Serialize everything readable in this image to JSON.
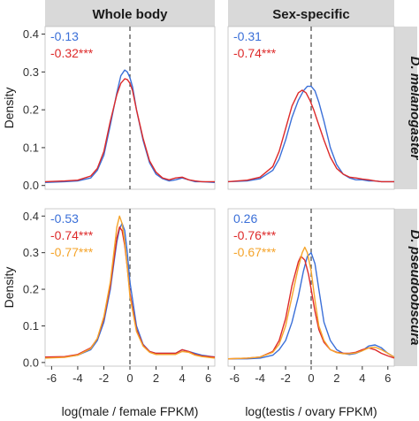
{
  "chart_data": {
    "type": "line",
    "column_strips": [
      "Whole body",
      "Sex-specific"
    ],
    "row_strips": [
      "D. melanogaster",
      "D. pseudoobscura"
    ],
    "ylabel": "Density",
    "xlabels": [
      "log(male / female FPKM)",
      "log(testis / ovary FPKM)"
    ],
    "xlim": [
      -6.5,
      6.5
    ],
    "ylim": [
      -0.01,
      0.42
    ],
    "xticks": [
      -6,
      -4,
      -2,
      0,
      2,
      4,
      6
    ],
    "xtick_labels": [
      "-6",
      "-4",
      "-2",
      "0",
      "2",
      "4",
      "6"
    ],
    "yticks": [
      0.0,
      0.1,
      0.2,
      0.3,
      0.4
    ],
    "ytick_labels": [
      "0.0",
      "0.1",
      "0.2",
      "0.3",
      "0.4"
    ],
    "reference_line_x": 0,
    "colors": {
      "blue": "#3a6fd8",
      "red": "#dd2a2a",
      "orange": "#f5a42b",
      "strip_bg": "#d9d9d9",
      "dashed": "#444444"
    },
    "panels": [
      {
        "id": "melanogaster-whole-body",
        "annotations": [
          {
            "text": "-0.13",
            "color": "#3a6fd8"
          },
          {
            "text": "-0.32***",
            "color": "#dd2a2a"
          }
        ],
        "series": [
          {
            "color": "#3a6fd8",
            "x": [
              -6.5,
              -5,
              -4,
              -3,
              -2.5,
              -2,
              -1.5,
              -1,
              -0.7,
              -0.4,
              -0.2,
              0,
              0.2,
              0.5,
              1,
              1.5,
              2,
              2.5,
              3,
              3.5,
              4,
              4.5,
              5,
              5.5,
              6.5
            ],
            "y": [
              0.008,
              0.01,
              0.012,
              0.02,
              0.04,
              0.08,
              0.16,
              0.245,
              0.29,
              0.305,
              0.3,
              0.285,
              0.26,
              0.2,
              0.12,
              0.06,
              0.03,
              0.018,
              0.012,
              0.015,
              0.02,
              0.015,
              0.01,
              0.01,
              0.008
            ]
          },
          {
            "color": "#dd2a2a",
            "x": [
              -6.5,
              -5,
              -4,
              -3,
              -2.5,
              -2,
              -1.5,
              -1,
              -0.7,
              -0.4,
              -0.2,
              0,
              0.2,
              0.5,
              1,
              1.5,
              2,
              2.5,
              3,
              3.5,
              4,
              4.5,
              5,
              5.5,
              6.5
            ],
            "y": [
              0.01,
              0.012,
              0.014,
              0.025,
              0.045,
              0.09,
              0.17,
              0.24,
              0.27,
              0.282,
              0.28,
              0.27,
              0.25,
              0.2,
              0.125,
              0.065,
              0.035,
              0.02,
              0.015,
              0.02,
              0.022,
              0.015,
              0.012,
              0.01,
              0.01
            ]
          }
        ]
      },
      {
        "id": "melanogaster-sex-specific",
        "annotations": [
          {
            "text": "-0.31",
            "color": "#3a6fd8"
          },
          {
            "text": "-0.74***",
            "color": "#dd2a2a"
          }
        ],
        "series": [
          {
            "color": "#3a6fd8",
            "x": [
              -6.5,
              -5,
              -4,
              -3,
              -2.5,
              -2,
              -1.5,
              -1,
              -0.6,
              -0.3,
              0,
              0.3,
              0.6,
              1,
              1.5,
              2,
              2.5,
              3,
              3.5,
              4,
              4.5,
              5,
              5.5,
              6.5
            ],
            "y": [
              0.01,
              0.012,
              0.018,
              0.04,
              0.07,
              0.12,
              0.18,
              0.225,
              0.25,
              0.262,
              0.262,
              0.25,
              0.22,
              0.17,
              0.1,
              0.055,
              0.03,
              0.02,
              0.015,
              0.015,
              0.012,
              0.012,
              0.01,
              0.01
            ]
          },
          {
            "color": "#dd2a2a",
            "x": [
              -6.5,
              -5,
              -4,
              -3,
              -2.5,
              -2,
              -1.5,
              -1,
              -0.7,
              -0.4,
              -0.1,
              0.2,
              0.5,
              1,
              1.5,
              2,
              2.5,
              3,
              3.5,
              4,
              4.5,
              5,
              5.5,
              6.5
            ],
            "y": [
              0.01,
              0.014,
              0.022,
              0.05,
              0.09,
              0.15,
              0.21,
              0.245,
              0.252,
              0.245,
              0.225,
              0.2,
              0.17,
              0.12,
              0.075,
              0.045,
              0.03,
              0.022,
              0.02,
              0.017,
              0.015,
              0.012,
              0.01,
              0.01
            ]
          }
        ]
      },
      {
        "id": "pseudoobscura-whole-body",
        "annotations": [
          {
            "text": "-0.53",
            "color": "#3a6fd8"
          },
          {
            "text": "-0.74***",
            "color": "#dd2a2a"
          },
          {
            "text": "-0.77***",
            "color": "#f5a42b"
          }
        ],
        "series": [
          {
            "color": "#3a6fd8",
            "x": [
              -6.5,
              -5,
              -4,
              -3,
              -2.5,
              -2,
              -1.5,
              -1.2,
              -1,
              -0.8,
              -0.6,
              -0.4,
              -0.2,
              0,
              0.5,
              1,
              1.5,
              2,
              2.5,
              3,
              3.5,
              4,
              4.5,
              5,
              5.5,
              6.5
            ],
            "y": [
              0.015,
              0.015,
              0.02,
              0.035,
              0.06,
              0.11,
              0.2,
              0.28,
              0.33,
              0.365,
              0.38,
              0.36,
              0.3,
              0.22,
              0.1,
              0.05,
              0.03,
              0.025,
              0.025,
              0.025,
              0.025,
              0.035,
              0.03,
              0.025,
              0.02,
              0.015
            ]
          },
          {
            "color": "#dd2a2a",
            "x": [
              -6.5,
              -5,
              -4,
              -3,
              -2.5,
              -2,
              -1.5,
              -1.2,
              -1,
              -0.8,
              -0.6,
              -0.4,
              -0.2,
              0,
              0.5,
              1,
              1.5,
              2,
              2.5,
              3,
              3.5,
              4,
              4.5,
              5,
              5.5,
              6.5
            ],
            "y": [
              0.015,
              0.016,
              0.022,
              0.04,
              0.065,
              0.12,
              0.21,
              0.29,
              0.34,
              0.37,
              0.36,
              0.32,
              0.26,
              0.19,
              0.09,
              0.048,
              0.03,
              0.025,
              0.025,
              0.025,
              0.025,
              0.035,
              0.03,
              0.022,
              0.018,
              0.015
            ]
          },
          {
            "color": "#f5a42b",
            "x": [
              -6.5,
              -5,
              -4,
              -3,
              -2.5,
              -2,
              -1.5,
              -1.2,
              -1,
              -0.8,
              -0.6,
              -0.4,
              -0.2,
              0,
              0.5,
              1,
              1.5,
              2,
              2.5,
              3,
              3.5,
              4,
              4.5,
              5,
              5.5,
              6.5
            ],
            "y": [
              0.012,
              0.014,
              0.02,
              0.038,
              0.066,
              0.125,
              0.22,
              0.31,
              0.37,
              0.4,
              0.38,
              0.33,
              0.26,
              0.18,
              0.085,
              0.045,
              0.028,
              0.022,
              0.022,
              0.022,
              0.022,
              0.03,
              0.028,
              0.02,
              0.016,
              0.012
            ]
          }
        ]
      },
      {
        "id": "pseudoobscura-sex-specific",
        "annotations": [
          {
            "text": "0.26",
            "color": "#3a6fd8"
          },
          {
            "text": "-0.76***",
            "color": "#dd2a2a"
          },
          {
            "text": "-0.67***",
            "color": "#f5a42b"
          }
        ],
        "series": [
          {
            "color": "#3a6fd8",
            "x": [
              -6.5,
              -5,
              -4,
              -3,
              -2.5,
              -2,
              -1.5,
              -1,
              -0.6,
              -0.3,
              0,
              0.3,
              0.6,
              1,
              1.5,
              2,
              2.5,
              3,
              3.5,
              4,
              4.5,
              5,
              5.5,
              6,
              6.5
            ],
            "y": [
              0.01,
              0.01,
              0.012,
              0.02,
              0.035,
              0.06,
              0.11,
              0.18,
              0.25,
              0.29,
              0.3,
              0.27,
              0.2,
              0.11,
              0.06,
              0.035,
              0.025,
              0.022,
              0.025,
              0.032,
              0.045,
              0.048,
              0.04,
              0.025,
              0.015
            ]
          },
          {
            "color": "#dd2a2a",
            "x": [
              -6.5,
              -5,
              -4,
              -3,
              -2.5,
              -2,
              -1.5,
              -1,
              -0.8,
              -0.5,
              -0.2,
              0,
              0.3,
              0.6,
              1,
              1.5,
              2,
              2.5,
              3,
              3.5,
              4,
              4.5,
              5,
              5.5,
              6,
              6.5
            ],
            "y": [
              0.01,
              0.012,
              0.015,
              0.03,
              0.06,
              0.12,
              0.21,
              0.275,
              0.29,
              0.28,
              0.24,
              0.2,
              0.14,
              0.09,
              0.055,
              0.035,
              0.028,
              0.025,
              0.025,
              0.028,
              0.035,
              0.04,
              0.035,
              0.025,
              0.018,
              0.012
            ]
          },
          {
            "color": "#f5a42b",
            "x": [
              -6.5,
              -5,
              -4,
              -3,
              -2.5,
              -2,
              -1.5,
              -1,
              -0.7,
              -0.5,
              -0.3,
              0,
              0.3,
              0.6,
              1,
              1.5,
              2,
              2.5,
              3,
              3.5,
              4,
              4.5,
              5,
              5.5,
              6,
              6.5
            ],
            "y": [
              0.01,
              0.012,
              0.015,
              0.028,
              0.05,
              0.1,
              0.18,
              0.26,
              0.3,
              0.315,
              0.3,
              0.25,
              0.17,
              0.1,
              0.06,
              0.035,
              0.027,
              0.024,
              0.024,
              0.026,
              0.032,
              0.04,
              0.042,
              0.035,
              0.025,
              0.015
            ]
          }
        ]
      }
    ]
  }
}
